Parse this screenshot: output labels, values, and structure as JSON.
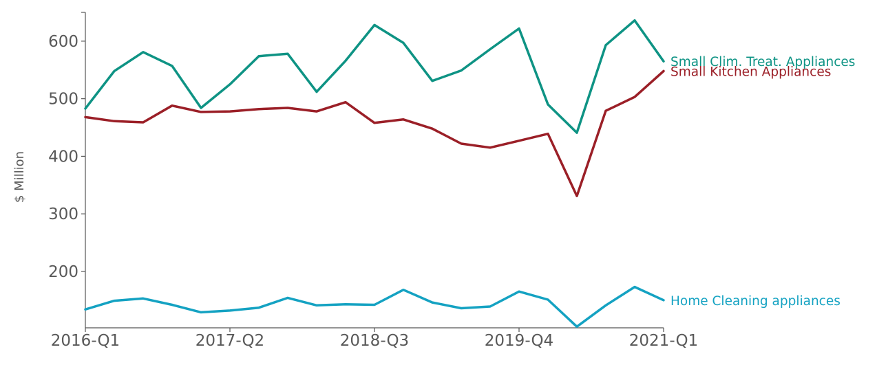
{
  "chart_data": {
    "type": "line",
    "ylabel": "$ Million",
    "xlabel": "",
    "x": [
      "2016-Q1",
      "2016-Q2",
      "2016-Q3",
      "2016-Q4",
      "2017-Q1",
      "2017-Q2",
      "2017-Q3",
      "2017-Q4",
      "2018-Q1",
      "2018-Q2",
      "2018-Q3",
      "2018-Q4",
      "2019-Q1",
      "2019-Q2",
      "2019-Q3",
      "2019-Q4",
      "2020-Q1",
      "2020-Q2",
      "2020-Q3",
      "2020-Q4",
      "2021-Q1"
    ],
    "x_tick_labels": [
      "2016-Q1",
      "2017-Q2",
      "2018-Q3",
      "2019-Q4",
      "2021-Q1"
    ],
    "y_ticks": [
      200,
      300,
      400,
      500,
      600
    ],
    "ylim": [
      102,
      650
    ],
    "grid": false,
    "legend": "end-of-line labels",
    "series": [
      {
        "name": "Small Clim. Treat. Appliances",
        "color": "#0e9384",
        "values": [
          483,
          548,
          581,
          557,
          484,
          525,
          574,
          578,
          512,
          566,
          628,
          597,
          531,
          549,
          586,
          622,
          490,
          441,
          593,
          636,
          565
        ]
      },
      {
        "name": "Small Kitchen Appliances",
        "color": "#9b1f27",
        "values": [
          468,
          461,
          459,
          488,
          477,
          478,
          482,
          484,
          478,
          494,
          458,
          464,
          448,
          422,
          415,
          427,
          439,
          331,
          479,
          503,
          548
        ]
      },
      {
        "name": "Home Cleaning appliances",
        "color": "#14a2c2",
        "values": [
          134,
          149,
          153,
          142,
          129,
          132,
          137,
          154,
          141,
          143,
          142,
          168,
          146,
          136,
          139,
          165,
          151,
          104,
          141,
          173,
          150
        ]
      }
    ]
  }
}
